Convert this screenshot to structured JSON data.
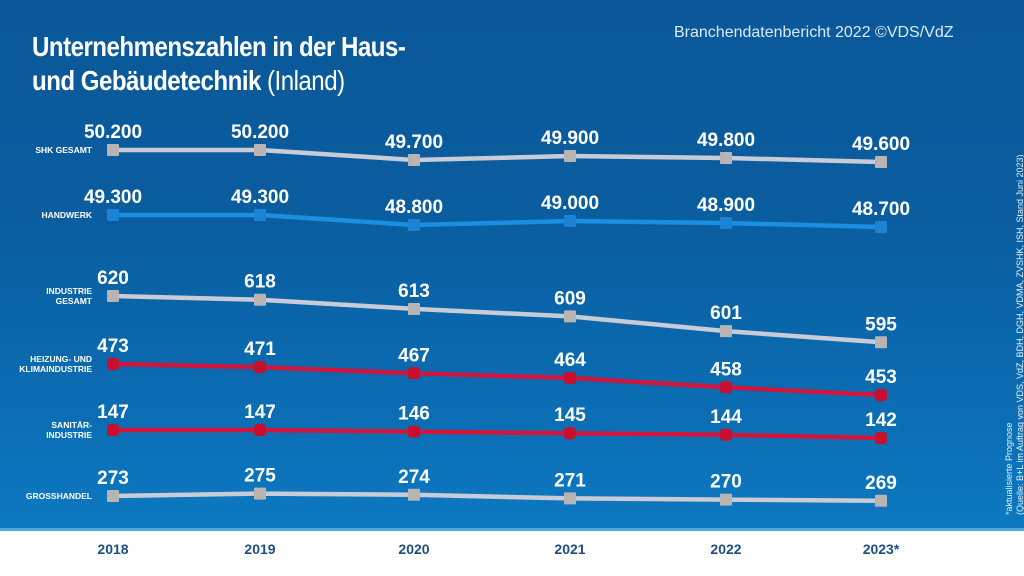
{
  "header": {
    "title_bold_line1": "Unternehmenszahlen in der Haus-",
    "title_bold_line2": "und Gebäudetechnik",
    "title_light": "(Inland)",
    "source_top": "Branchendatenbericht 2022 ©VDS/VdZ"
  },
  "footnote": {
    "line1": "*aktualisierte Prognose",
    "line2": "(Quelle: B+L im Auftrag von VDS, VdZ, BDH, DGH, VDMA, ZVSHK, ISH, Stand Juni 2023)"
  },
  "colors": {
    "background_top": "#0a5899",
    "background_bottom": "#0c79c1",
    "grey_series": "#c9ccd6",
    "blue_series": "#1a8fe0",
    "red_series": "#d0163c",
    "year_label": "#1e4f82"
  },
  "chart_data": {
    "type": "line",
    "title": "Unternehmenszahlen in der Haus- und Gebäudetechnik (Inland)",
    "xlabel": "",
    "ylabel": "",
    "categories": [
      "2018",
      "2019",
      "2020",
      "2021",
      "2022",
      "2023*"
    ],
    "grid": false,
    "legend": "inline-left",
    "series": [
      {
        "name": "SHK GESAMT",
        "label_lines": [
          "SHK GESAMT"
        ],
        "color": "grey",
        "values": [
          50200,
          50200,
          49700,
          49900,
          49800,
          49600
        ],
        "labels": [
          "50.200",
          "50.200",
          "49.700",
          "49.900",
          "49.800",
          "49.600"
        ]
      },
      {
        "name": "HANDWERK",
        "label_lines": [
          "HANDWERK"
        ],
        "color": "blue",
        "values": [
          49300,
          49300,
          48800,
          49000,
          48900,
          48700
        ],
        "labels": [
          "49.300",
          "49.300",
          "48.800",
          "49.000",
          "48.900",
          "48.700"
        ]
      },
      {
        "name": "INDUSTRIE GESAMT",
        "label_lines": [
          "INDUSTRIE",
          "GESAMT"
        ],
        "color": "grey",
        "values": [
          620,
          618,
          613,
          609,
          601,
          595
        ],
        "labels": [
          "620",
          "618",
          "613",
          "609",
          "601",
          "595"
        ]
      },
      {
        "name": "HEIZUNG- UND KLIMAINDUSTRIE",
        "label_lines": [
          "HEIZUNG- UND",
          "KLIMAINDUSTRIE"
        ],
        "color": "red",
        "values": [
          473,
          471,
          467,
          464,
          458,
          453
        ],
        "labels": [
          "473",
          "471",
          "467",
          "464",
          "458",
          "453"
        ]
      },
      {
        "name": "SANITÄR-INDUSTRIE",
        "label_lines": [
          "SANITÄR-",
          "INDUSTRIE"
        ],
        "color": "red",
        "values": [
          147,
          147,
          146,
          145,
          144,
          142
        ],
        "labels": [
          "147",
          "147",
          "146",
          "145",
          "144",
          "142"
        ]
      },
      {
        "name": "GROSSHANDEL",
        "label_lines": [
          "GROSSHANDEL"
        ],
        "color": "grey",
        "values": [
          273,
          275,
          274,
          271,
          270,
          269
        ],
        "labels": [
          "273",
          "275",
          "274",
          "271",
          "270",
          "269"
        ]
      }
    ]
  }
}
